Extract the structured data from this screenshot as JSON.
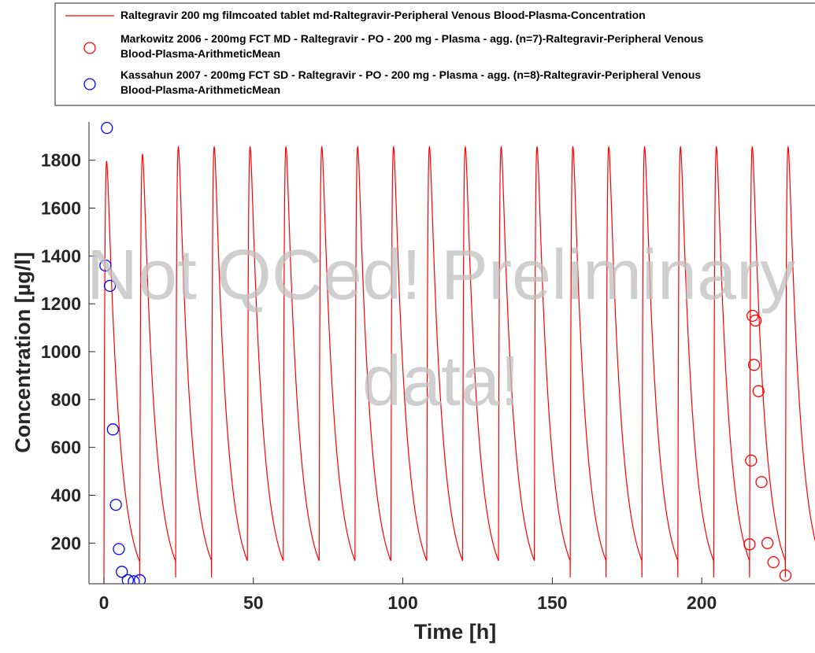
{
  "chart_data": {
    "type": "line",
    "title": "",
    "xlabel": "Time [h]",
    "ylabel": "Concentration [µg/l]",
    "xlim": [
      -5,
      240
    ],
    "ylim": [
      30,
      1960
    ],
    "xticks": [
      0,
      50,
      100,
      150,
      200
    ],
    "yticks": [
      200,
      400,
      600,
      800,
      1000,
      1200,
      1400,
      1600,
      1800
    ],
    "grid": false,
    "legend_position": "top",
    "watermark": [
      "Not QCed! Preliminary",
      "data!"
    ],
    "simulation_model": {
      "dose_interval_h": 12,
      "absorption_rate_per_h": 3.0,
      "elimination_rate_per_h": 0.25,
      "first_dose_peak": 1750,
      "steady_state_peak": 1810,
      "trough": 55
    },
    "series": [
      {
        "name": "Raltegravir 200 mg filmcoated tablet md-Raltegravir-Peripheral Venous Blood-Plasma-Concentration",
        "style": "line",
        "color": "#ff0000",
        "x_range": [
          0,
          240
        ]
      },
      {
        "name": "Markowitz 2006 - 200mg FCT MD - Raltegravir - PO - 200 mg - Plasma - agg. (n=7)-Raltegravir-Peripheral Venous Blood-Plasma-ArithmeticMean",
        "style": "marker",
        "color": "#ff0000",
        "x": [
          216.0,
          216.5,
          217.0,
          217.5,
          218.0,
          219.0,
          220.0,
          222.0,
          224.0,
          228.0
        ],
        "y": [
          195,
          545,
          1150,
          945,
          1130,
          835,
          455,
          200,
          120,
          65
        ]
      },
      {
        "name": "Kassahun 2007 - 200mg FCT SD - Raltegravir - PO - 200 mg - Plasma - agg. (n=8)-Raltegravir-Peripheral Venous Blood-Plasma-ArithmeticMean",
        "style": "marker",
        "color": "#0000ff",
        "x": [
          0.5,
          1.0,
          2.0,
          3.0,
          4.0,
          5.0,
          6.0,
          8.0,
          10.0,
          12.0
        ],
        "y": [
          1360,
          1935,
          1275,
          675,
          360,
          175,
          80,
          45,
          40,
          45
        ]
      }
    ]
  }
}
